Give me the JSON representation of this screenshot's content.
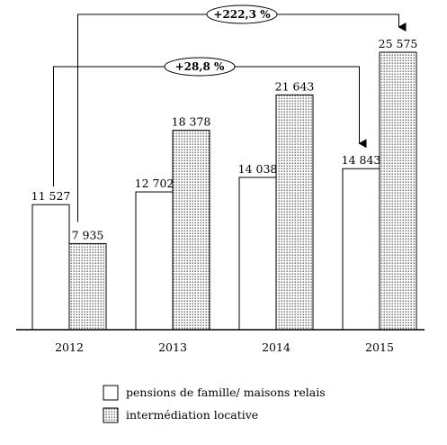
{
  "chart_data": {
    "type": "bar",
    "categories": [
      "2012",
      "2013",
      "2014",
      "2015"
    ],
    "series": [
      {
        "name": "pensions de famille/ maisons relais",
        "values": [
          11527,
          12702,
          14038,
          14843
        ],
        "value_labels": [
          "11 527",
          "12 702",
          "14 038",
          "14 843"
        ],
        "fill": "white"
      },
      {
        "name": "intermédiation locative",
        "values": [
          7935,
          18378,
          21643,
          25575
        ],
        "value_labels": [
          "7 935",
          "18 378",
          "21 643",
          "25 575"
        ],
        "fill": "dotted"
      }
    ],
    "annotations": [
      {
        "text": "+222,3 %",
        "series": 1,
        "from": "2012",
        "to": "2015"
      },
      {
        "text": "+28,8 %",
        "series": 0,
        "from": "2012",
        "to": "2015"
      }
    ],
    "ylim": [
      0,
      25575
    ],
    "grid": false,
    "legend_position": "bottom",
    "colors": {
      "stroke": "#000000",
      "background": "#ffffff",
      "dot": "#000000"
    }
  }
}
